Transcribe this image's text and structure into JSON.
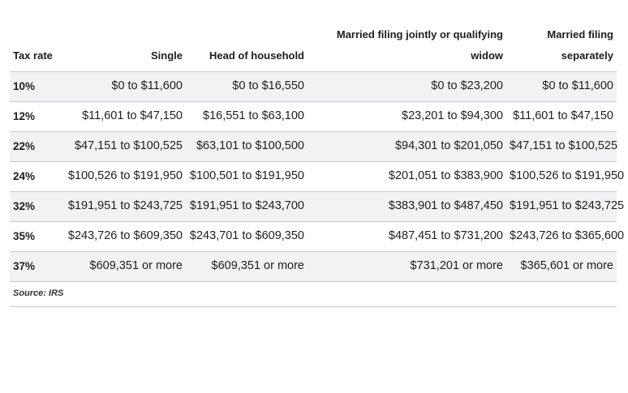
{
  "table": {
    "headers": [
      "Tax rate",
      "Single",
      "Head of household",
      "Married filing jointly or qualifying widow",
      "Married filing separately"
    ],
    "rows": [
      [
        "10%",
        "$0 to $11,600",
        "$0 to $16,550",
        "$0 to $23,200",
        "$0 to $11,600"
      ],
      [
        "12%",
        "$11,601 to $47,150",
        "$16,551 to $63,100",
        "$23,201 to $94,300",
        "$11,601 to $47,150"
      ],
      [
        "22%",
        "$47,151 to $100,525",
        "$63,101 to $100,500",
        "$94,301 to $201,050",
        "$47,151 to $100,525"
      ],
      [
        "24%",
        "$100,526 to $191,950",
        "$100,501 to $191,950",
        "$201,051 to $383,900",
        "$100,526 to $191,950"
      ],
      [
        "32%",
        "$191,951 to $243,725",
        "$191,951 to $243,700",
        "$383,901 to $487,450",
        "$191,951 to $243,725"
      ],
      [
        "35%",
        "$243,726 to $609,350",
        "$243,701 to $609,350",
        "$487,451 to $731,200",
        "$243,726 to $365,600"
      ],
      [
        "37%",
        "$609,351 or more",
        "$609,351 or more",
        "$731,201 or more",
        "$365,601 or more"
      ]
    ]
  },
  "source": "Source: IRS",
  "colors": {
    "shade_row": "#f2f2f5",
    "rule": "#c9c9cc",
    "text": "#1d1d1f"
  }
}
